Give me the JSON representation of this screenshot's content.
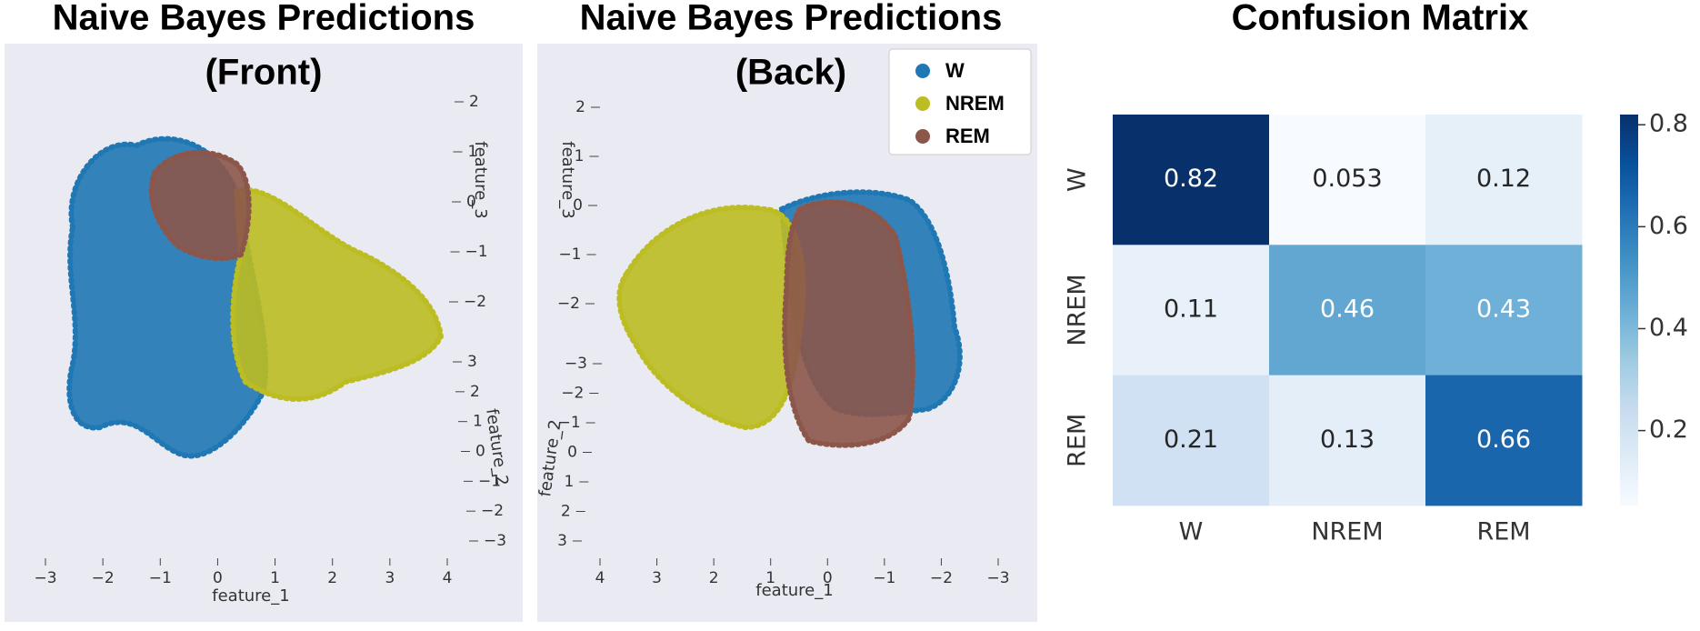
{
  "chart_data": [
    {
      "type": "scatter3d",
      "title": [
        "Naive Bayes Predictions",
        "(Front)"
      ],
      "xlabel": "feature_1",
      "ylabel": "feature_2",
      "zlabel": "feature_3",
      "xticks": [
        {
          "value": -3,
          "label": "−3"
        },
        {
          "value": -2,
          "label": "−2"
        },
        {
          "value": -1,
          "label": "−1"
        },
        0,
        1,
        2,
        3,
        4
      ],
      "yticks": [
        3,
        2,
        1,
        0,
        {
          "value": -1,
          "label": "−1"
        },
        {
          "value": -2,
          "label": "−2"
        },
        {
          "value": -3,
          "label": "−3"
        }
      ],
      "zticks": [
        2,
        1,
        0,
        {
          "value": -1,
          "label": "−1"
        },
        {
          "value": -2,
          "label": "−2"
        }
      ],
      "series": [
        {
          "name": "W",
          "color": "#1f77b4"
        },
        {
          "name": "NREM",
          "color": "#bcbd22"
        },
        {
          "name": "REM",
          "color": "#8c564b"
        }
      ]
    },
    {
      "type": "scatter3d",
      "title": [
        "Naive Bayes Predictions",
        "(Back)"
      ],
      "xlabel": "feature_1",
      "ylabel": "feature_2",
      "zlabel": "feature_3",
      "xticks": [
        4,
        3,
        2,
        1,
        0,
        {
          "value": -1,
          "label": "−1"
        },
        {
          "value": -2,
          "label": "−2"
        },
        {
          "value": -3,
          "label": "−3"
        }
      ],
      "yticks": [
        {
          "value": -3,
          "label": "−3"
        },
        {
          "value": -2,
          "label": "−2"
        },
        {
          "value": -1,
          "label": "−1"
        },
        0,
        1,
        2,
        3
      ],
      "zticks": [
        2,
        1,
        0,
        {
          "value": -1,
          "label": "−1"
        },
        {
          "value": -2,
          "label": "−2"
        }
      ],
      "series": [
        {
          "name": "W",
          "color": "#1f77b4"
        },
        {
          "name": "NREM",
          "color": "#bcbd22"
        },
        {
          "name": "REM",
          "color": "#8c564b"
        }
      ],
      "legend": "upper right"
    },
    {
      "type": "heatmap",
      "title": "Confusion Matrix",
      "x": [
        "W",
        "NREM",
        "REM"
      ],
      "y": [
        "W",
        "NREM",
        "REM"
      ],
      "values": [
        [
          0.82,
          0.053,
          0.12
        ],
        [
          0.11,
          0.46,
          0.43
        ],
        [
          0.21,
          0.13,
          0.66
        ]
      ],
      "clim": [
        0.053,
        0.82
      ],
      "cticks": [
        0.2,
        0.4,
        0.6,
        0.8
      ],
      "cmap": "Blues"
    }
  ]
}
